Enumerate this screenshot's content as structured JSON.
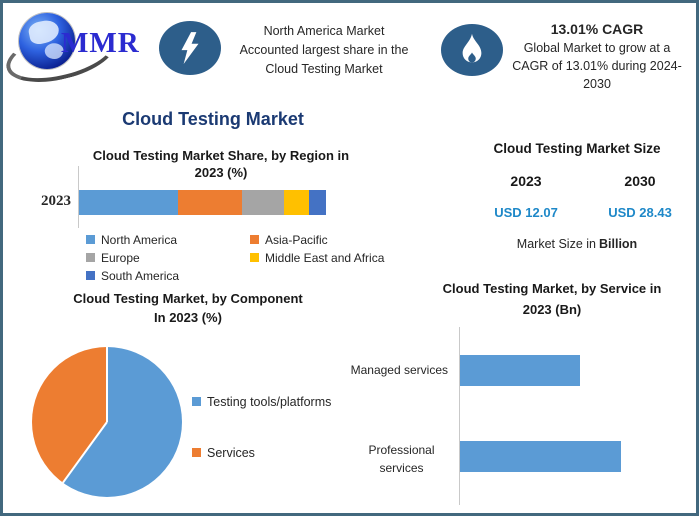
{
  "header": {
    "logo_text": "MMR",
    "highlight": {
      "line1": "North America Market",
      "line2": "Accounted largest share in the",
      "line3": "Cloud Testing Market"
    },
    "cagr": {
      "heading": "13.01% CAGR",
      "line1": "Global Market to grow at a",
      "line2": "CAGR of 13.01% during 2024-",
      "line3": "2030"
    }
  },
  "main_title": "Cloud Testing Market",
  "region_chart": {
    "title_line1": "Cloud Testing Market Share, by Region in",
    "title_line2": "2023 (%)",
    "category_label": "2023"
  },
  "component_chart": {
    "title_line1": "Cloud Testing Market, by Component",
    "title_line2": "In 2023 (%)"
  },
  "market_size": {
    "title": "Cloud Testing Market Size",
    "year_left": "2023",
    "year_right": "2030",
    "value_left": "USD 12.07",
    "value_right": "USD 28.43",
    "note_regular": "Market Size in",
    "note_bold": "Billion"
  },
  "service_chart": {
    "title_line1": "Cloud Testing Market, by Service in",
    "title_line2": "2023 (Bn)"
  },
  "chart_data": [
    {
      "type": "bar",
      "subtype": "stacked-horizontal",
      "title": "Cloud Testing Market Share, by Region in 2023 (%)",
      "categories": [
        "2023"
      ],
      "series": [
        {
          "name": "North America",
          "values": [
            40
          ]
        },
        {
          "name": "Asia-Pacific",
          "values": [
            26
          ]
        },
        {
          "name": "Europe",
          "values": [
            17
          ]
        },
        {
          "name": "Middle East and Africa",
          "values": [
            10
          ]
        },
        {
          "name": "South America",
          "values": [
            7
          ]
        }
      ],
      "colors": [
        "#5B9BD5",
        "#ED7D31",
        "#A5A5A5",
        "#FFC000",
        "#4472C4"
      ],
      "unit": "%",
      "xlim": [
        0,
        100
      ],
      "grid": false,
      "legend_position": "bottom",
      "values_estimated": true
    },
    {
      "type": "pie",
      "title": "Cloud Testing Market, by Component In 2023 (%)",
      "labels": [
        "Testing tools/platforms",
        "Services"
      ],
      "values": [
        60,
        40
      ],
      "colors": [
        "#5B9BD5",
        "#ED7D31"
      ],
      "unit": "%",
      "start_angle_deg": 0,
      "direction": "clockwise",
      "legend_position": "right",
      "values_estimated": true
    },
    {
      "type": "bar",
      "subtype": "horizontal",
      "title": "Cloud Testing Market, by Service in 2023 (Bn)",
      "categories": [
        "Managed services",
        "Professional services"
      ],
      "values": [
        5.2,
        7.0
      ],
      "color": "#5B9BD5",
      "unit": "Bn",
      "xlim": [
        0,
        10
      ],
      "grid": false,
      "values_estimated": true
    }
  ],
  "colors": {
    "blue": "#5B9BD5",
    "orange": "#ED7D31",
    "gray": "#A5A5A5",
    "yellow": "#FFC000",
    "darkblue": "#4472C4",
    "title_navy": "#1B3A73",
    "value_blue": "#1E88C8",
    "icon_circle": "#2D5E8A",
    "frame_border": "#42687E"
  }
}
